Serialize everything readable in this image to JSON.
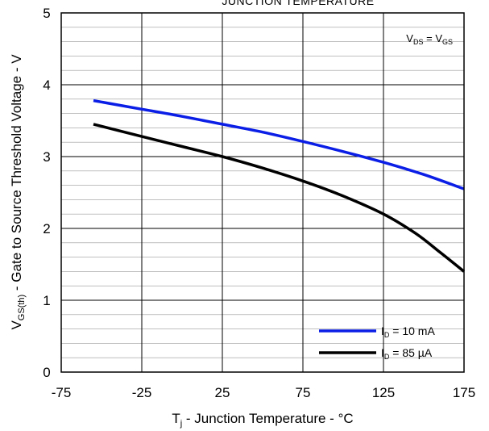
{
  "chart_data": {
    "type": "line",
    "title": "JUNCTION TEMPERATURE",
    "xlabel": "T",
    "xlabel_sub": "j",
    "xlabel_rest": " - Junction Temperature - °C",
    "ylabel": "V",
    "ylabel_sub": "GS(th)",
    "ylabel_rest": " - Gate to Source Threshold Voltage - V",
    "xlim": [
      -75,
      175
    ],
    "ylim": [
      0,
      5
    ],
    "xticks": [
      -75,
      -25,
      25,
      75,
      125,
      175
    ],
    "yticks": [
      0,
      1,
      2,
      3,
      4,
      5
    ],
    "grid": true,
    "legend_position": "bottom-right",
    "annotation": {
      "a": "V",
      "a_sub": "DS",
      "eq": " = ",
      "b": "V",
      "b_sub": "GS"
    },
    "series": [
      {
        "name_main": "I",
        "name_sub": "D",
        "name_rest": " = 10 mA",
        "color": "#0a1ee6",
        "x": [
          -55,
          -25,
          0,
          25,
          50,
          75,
          100,
          125,
          150,
          175
        ],
        "y": [
          3.78,
          3.66,
          3.56,
          3.45,
          3.34,
          3.21,
          3.07,
          2.92,
          2.75,
          2.55
        ]
      },
      {
        "name_main": "I",
        "name_sub": "D",
        "name_rest": " = 85 µA",
        "color": "#000000",
        "x": [
          -55,
          -25,
          0,
          25,
          50,
          75,
          100,
          125,
          145,
          160,
          175
        ],
        "y": [
          3.45,
          3.28,
          3.14,
          3.0,
          2.84,
          2.66,
          2.45,
          2.2,
          1.93,
          1.67,
          1.4
        ]
      }
    ]
  }
}
